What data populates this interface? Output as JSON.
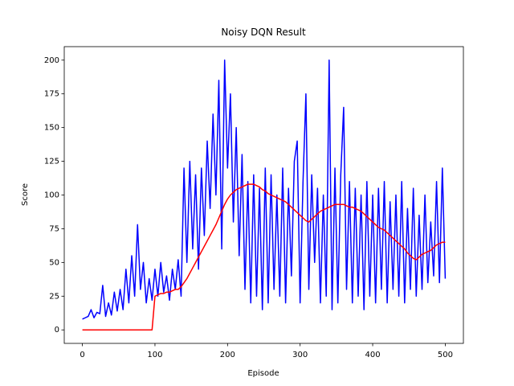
{
  "chart_data": {
    "type": "line",
    "title": "Noisy DQN Result",
    "x_label": "Episode",
    "y_label": "Score",
    "x": [
      0,
      4,
      8,
      12,
      16,
      20,
      24,
      28,
      32,
      36,
      40,
      44,
      48,
      52,
      56,
      60,
      64,
      68,
      72,
      76,
      80,
      84,
      88,
      92,
      96,
      100,
      104,
      108,
      112,
      116,
      120,
      124,
      128,
      132,
      136,
      140,
      144,
      148,
      152,
      156,
      160,
      164,
      168,
      172,
      176,
      180,
      184,
      188,
      192,
      196,
      200,
      204,
      208,
      212,
      216,
      220,
      224,
      228,
      232,
      236,
      240,
      244,
      248,
      252,
      256,
      260,
      264,
      268,
      272,
      276,
      280,
      284,
      288,
      292,
      296,
      300,
      304,
      308,
      312,
      316,
      320,
      324,
      328,
      332,
      336,
      340,
      344,
      348,
      352,
      356,
      360,
      364,
      368,
      372,
      376,
      380,
      384,
      388,
      392,
      396,
      400,
      404,
      408,
      412,
      416,
      420,
      424,
      428,
      432,
      436,
      440,
      444,
      448,
      452,
      456,
      460,
      464,
      468,
      472,
      476,
      480,
      484,
      488,
      492,
      496,
      500
    ],
    "series": [
      {
        "color": "#0000ff",
        "values": [
          8,
          9,
          10,
          15,
          9,
          13,
          12,
          33,
          10,
          20,
          11,
          28,
          14,
          30,
          15,
          45,
          20,
          55,
          25,
          78,
          30,
          50,
          20,
          38,
          22,
          45,
          25,
          50,
          28,
          40,
          22,
          45,
          30,
          52,
          25,
          120,
          50,
          125,
          60,
          115,
          45,
          120,
          70,
          140,
          90,
          160,
          100,
          185,
          60,
          200,
          120,
          175,
          80,
          150,
          55,
          130,
          30,
          110,
          20,
          115,
          25,
          105,
          15,
          120,
          20,
          115,
          30,
          100,
          25,
          120,
          20,
          105,
          40,
          125,
          140,
          20,
          110,
          175,
          30,
          115,
          50,
          105,
          20,
          100,
          25,
          200,
          15,
          120,
          20,
          115,
          165,
          30,
          110,
          20,
          105,
          25,
          100,
          15,
          110,
          25,
          100,
          20,
          105,
          30,
          110,
          20,
          95,
          30,
          100,
          25,
          110,
          20,
          90,
          30,
          105,
          25,
          85,
          30,
          100,
          35,
          80,
          40,
          110,
          35,
          120,
          38
        ]
      },
      {
        "color": "#ff0000",
        "values": [
          0,
          0,
          0,
          0,
          0,
          0,
          0,
          0,
          0,
          0,
          0,
          0,
          0,
          0,
          0,
          0,
          0,
          0,
          0,
          0,
          0,
          0,
          0,
          0,
          0,
          25,
          26,
          27,
          27,
          28,
          28,
          29,
          30,
          30,
          32,
          35,
          38,
          42,
          46,
          50,
          54,
          58,
          62,
          66,
          70,
          74,
          78,
          83,
          88,
          93,
          97,
          100,
          102,
          104,
          105,
          106,
          107,
          108,
          108,
          108,
          107,
          106,
          104,
          103,
          101,
          100,
          99,
          98,
          97,
          96,
          95,
          93,
          91,
          89,
          87,
          85,
          83,
          81,
          80,
          82,
          84,
          86,
          88,
          89,
          90,
          91,
          92,
          93,
          93,
          93,
          93,
          92,
          91,
          91,
          90,
          89,
          88,
          86,
          84,
          82,
          80,
          78,
          76,
          75,
          74,
          72,
          70,
          68,
          66,
          64,
          62,
          60,
          57,
          55,
          53,
          52,
          54,
          56,
          57,
          58,
          59,
          61,
          63,
          64,
          65,
          65
        ]
      }
    ],
    "xlim": [
      -25,
      525
    ],
    "ylim": [
      -10,
      210
    ],
    "xticks": [
      0,
      100,
      200,
      300,
      400,
      500
    ],
    "yticks": [
      0,
      25,
      50,
      75,
      100,
      125,
      150,
      175,
      200
    ],
    "grid": false
  }
}
